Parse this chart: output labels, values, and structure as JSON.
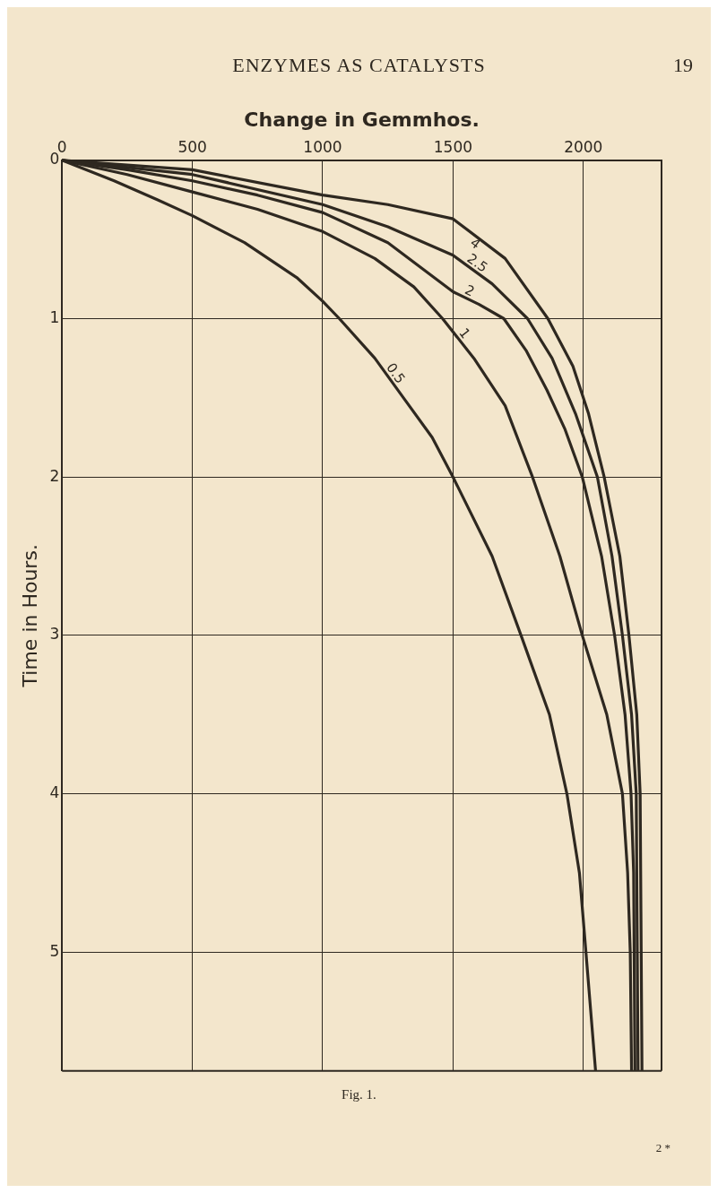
{
  "chart_data": {
    "type": "line",
    "xlabel": "Change in Gemmhos.",
    "ylabel": "Time in Hours.",
    "annotations": [
      "ENZYMES AS CATALYSTS",
      "19",
      "Fig. 1.",
      "2 *"
    ],
    "xlim": [
      0,
      2300
    ],
    "xticks": [
      0,
      500,
      1000,
      1500,
      2000
    ],
    "ylim": [
      5.75,
      0
    ],
    "yticks": [
      0,
      1,
      2,
      3,
      4,
      5
    ],
    "grid": true,
    "legend": false,
    "marker": "none",
    "line_style": "solid",
    "series": [
      {
        "name": "0.5",
        "color": "#2e2820",
        "x": [
          0,
          200,
          367,
          500,
          700,
          900,
          1000,
          1064,
          1200,
          1310,
          1420,
          1500,
          1650,
          1761,
          1870,
          1937,
          1985,
          2010,
          2047
        ],
        "values": [
          0,
          0.13,
          0.25,
          0.35,
          0.52,
          0.74,
          0.89,
          1,
          1.25,
          1.5,
          1.75,
          2,
          2.5,
          3,
          3.5,
          4,
          4.5,
          5,
          5.75
        ]
      },
      {
        "name": "1",
        "color": "#2e2820",
        "x": [
          0,
          250,
          500,
          750,
          1000,
          1200,
          1350,
          1460,
          1580,
          1700,
          1805,
          1910,
          1996,
          2090,
          2150,
          2170,
          2180,
          2185
        ],
        "values": [
          0,
          0.09,
          0.2,
          0.31,
          0.45,
          0.62,
          0.8,
          1,
          1.25,
          1.55,
          2,
          2.5,
          3,
          3.5,
          4,
          4.5,
          5,
          5.75
        ]
      },
      {
        "name": "2",
        "color": "#2e2820",
        "x": [
          0,
          250,
          500,
          750,
          1000,
          1250,
          1500,
          1600,
          1695,
          1780,
          1860,
          1930,
          1996,
          2070,
          2120,
          2160,
          2183,
          2193,
          2198
        ],
        "values": [
          0,
          0.06,
          0.13,
          0.22,
          0.33,
          0.52,
          0.83,
          0.91,
          1,
          1.2,
          1.45,
          1.7,
          2,
          2.5,
          3,
          3.5,
          4,
          4.5,
          5.75
        ]
      },
      {
        "name": "2.5",
        "color": "#2e2820",
        "x": [
          0,
          500,
          1000,
          1250,
          1500,
          1650,
          1786,
          1880,
          1970,
          2054,
          2110,
          2150,
          2185,
          2203,
          2210
        ],
        "values": [
          0,
          0.09,
          0.28,
          0.42,
          0.6,
          0.78,
          1,
          1.25,
          1.6,
          2,
          2.5,
          3,
          3.5,
          4,
          5.75
        ]
      },
      {
        "name": "4",
        "color": "#2e2820",
        "x": [
          0,
          500,
          1000,
          1250,
          1500,
          1700,
          1864,
          1960,
          2020,
          2080,
          2140,
          2175,
          2205,
          2218,
          2225
        ],
        "values": [
          0,
          0.06,
          0.22,
          0.28,
          0.37,
          0.62,
          1,
          1.3,
          1.6,
          2,
          2.5,
          3,
          3.5,
          4,
          5.75
        ]
      }
    ]
  }
}
